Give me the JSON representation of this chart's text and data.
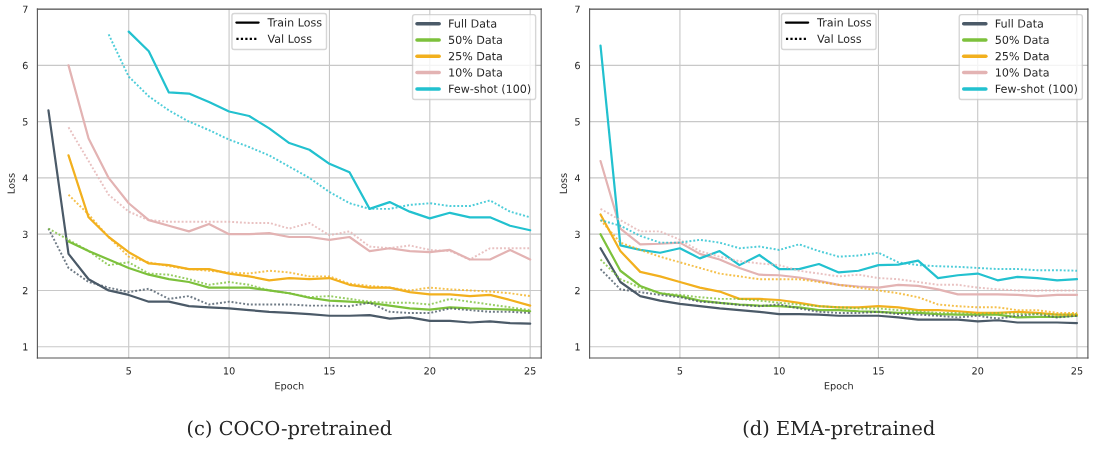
{
  "chart_data": [
    {
      "type": "line",
      "title": "(c) COCO-pretrained",
      "xlabel": "Epoch",
      "ylabel": "Loss",
      "x": [
        1,
        2,
        3,
        4,
        5,
        6,
        7,
        8,
        9,
        10,
        11,
        12,
        13,
        14,
        15,
        16,
        17,
        18,
        19,
        20,
        21,
        22,
        23,
        24,
        25
      ],
      "xlim": [
        0.45,
        25.55
      ],
      "ylim": [
        0.8,
        7
      ],
      "xticks": [
        5,
        10,
        15,
        20,
        25
      ],
      "yticks": [
        1,
        2,
        3,
        4,
        5,
        6,
        7
      ],
      "grid": true,
      "legend": "top right",
      "annotations": [
        "Train Loss",
        "Val Loss"
      ],
      "series": [
        {
          "name": "Full Data",
          "color": "#4b5a68",
          "line_style": "solid",
          "values": [
            5.2,
            2.65,
            2.2,
            2.0,
            1.92,
            1.8,
            1.8,
            1.72,
            1.7,
            1.68,
            1.65,
            1.62,
            1.6,
            1.58,
            1.55,
            1.55,
            1.56,
            1.5,
            1.52,
            1.46,
            1.46,
            1.43,
            1.45,
            1.42,
            1.41
          ]
        },
        {
          "color": "#4b5a68",
          "line_style": "dotted",
          "values": [
            3.1,
            2.4,
            2.15,
            2.05,
            1.97,
            2.03,
            1.85,
            1.9,
            1.75,
            1.8,
            1.75,
            1.75,
            1.75,
            1.73,
            1.73,
            1.72,
            1.78,
            1.62,
            1.6,
            1.6,
            1.68,
            1.65,
            1.62,
            1.62,
            1.6
          ]
        },
        {
          "name": "50% Data",
          "color": "#7dc13c",
          "line_style": "solid",
          "values": [
            null,
            2.87,
            2.7,
            2.55,
            2.4,
            2.28,
            2.2,
            2.15,
            2.05,
            2.05,
            2.05,
            2.0,
            1.95,
            1.87,
            1.82,
            1.8,
            1.78,
            1.73,
            1.68,
            1.66,
            1.7,
            1.68,
            1.67,
            1.66,
            1.63
          ]
        },
        {
          "color": "#7dc13c",
          "line_style": "dotted",
          "values": [
            3.1,
            2.9,
            2.7,
            2.45,
            2.5,
            2.3,
            2.28,
            2.2,
            2.1,
            2.15,
            2.1,
            2.0,
            1.95,
            1.88,
            1.9,
            1.85,
            1.8,
            1.78,
            1.78,
            1.75,
            1.85,
            1.8,
            1.75,
            1.7,
            1.65
          ]
        },
        {
          "name": "25% Data",
          "color": "#f2b01e",
          "line_style": "solid",
          "values": [
            null,
            4.4,
            3.3,
            2.95,
            2.68,
            2.48,
            2.45,
            2.38,
            2.38,
            2.3,
            2.25,
            2.18,
            2.22,
            2.2,
            2.22,
            2.1,
            2.05,
            2.05,
            1.97,
            1.93,
            1.93,
            1.9,
            1.92,
            1.83,
            1.73
          ]
        },
        {
          "color": "#f2b01e",
          "line_style": "dotted",
          "values": [
            null,
            3.7,
            3.35,
            2.95,
            2.6,
            2.5,
            2.43,
            2.38,
            2.35,
            2.32,
            2.3,
            2.35,
            2.32,
            2.25,
            2.25,
            2.12,
            2.08,
            2.05,
            2.0,
            2.05,
            2.02,
            2.0,
            1.98,
            1.95,
            1.9
          ]
        },
        {
          "name": "10% Data",
          "color": "#e3b3b3",
          "line_style": "solid",
          "values": [
            null,
            6.0,
            4.7,
            4.0,
            3.55,
            3.25,
            3.15,
            3.05,
            3.18,
            3.0,
            3.0,
            3.02,
            2.95,
            2.95,
            2.9,
            2.95,
            2.7,
            2.75,
            2.7,
            2.68,
            2.72,
            2.55,
            2.55,
            2.72,
            2.55
          ]
        },
        {
          "color": "#e3b3b3",
          "line_style": "dotted",
          "values": [
            null,
            4.9,
            4.3,
            3.7,
            3.4,
            3.25,
            3.22,
            3.22,
            3.22,
            3.22,
            3.2,
            3.2,
            3.1,
            3.2,
            2.98,
            3.05,
            2.78,
            2.75,
            2.8,
            2.72,
            2.7,
            2.55,
            2.75,
            2.75,
            2.75
          ]
        },
        {
          "name": "Few-shot (100)",
          "color": "#22c1cf",
          "line_style": "solid",
          "values": [
            null,
            null,
            null,
            null,
            6.6,
            6.25,
            5.52,
            5.5,
            5.35,
            5.18,
            5.1,
            4.88,
            4.62,
            4.5,
            4.25,
            4.1,
            3.45,
            3.57,
            3.4,
            3.28,
            3.38,
            3.3,
            3.3,
            3.15,
            3.07
          ]
        },
        {
          "color": "#22c1cf",
          "line_style": "dotted",
          "values": [
            null,
            null,
            null,
            6.55,
            5.8,
            5.45,
            5.2,
            5.0,
            4.85,
            4.68,
            4.55,
            4.4,
            4.2,
            4.0,
            3.75,
            3.55,
            3.45,
            3.45,
            3.52,
            3.55,
            3.5,
            3.5,
            3.6,
            3.4,
            3.3
          ]
        }
      ]
    },
    {
      "type": "line",
      "title": "(d) EMA-pretrained",
      "xlabel": "Epoch",
      "ylabel": "Loss",
      "x": [
        1,
        2,
        3,
        4,
        5,
        6,
        7,
        8,
        9,
        10,
        11,
        12,
        13,
        14,
        15,
        16,
        17,
        18,
        19,
        20,
        21,
        22,
        23,
        24,
        25
      ],
      "xlim": [
        0.45,
        25.55
      ],
      "ylim": [
        0.8,
        7
      ],
      "xticks": [
        5,
        10,
        15,
        20,
        25
      ],
      "yticks": [
        1,
        2,
        3,
        4,
        5,
        6,
        7
      ],
      "grid": true,
      "legend": "top right",
      "annotations": [
        "Train Loss",
        "Val Loss"
      ],
      "series": [
        {
          "name": "Full Data",
          "color": "#4b5a68",
          "line_style": "solid",
          "values": [
            2.75,
            2.15,
            1.9,
            1.82,
            1.76,
            1.72,
            1.68,
            1.65,
            1.62,
            1.58,
            1.58,
            1.57,
            1.55,
            1.55,
            1.55,
            1.52,
            1.48,
            1.48,
            1.48,
            1.45,
            1.47,
            1.43,
            1.43,
            1.43,
            1.42
          ]
        },
        {
          "color": "#4b5a68",
          "line_style": "dotted",
          "values": [
            2.38,
            2.02,
            1.97,
            1.92,
            1.88,
            1.8,
            1.78,
            1.74,
            1.72,
            1.75,
            1.68,
            1.62,
            1.6,
            1.6,
            1.62,
            1.58,
            1.57,
            1.55,
            1.52,
            1.55,
            1.5,
            1.55,
            1.58,
            1.52,
            1.55
          ]
        },
        {
          "name": "50% Data",
          "color": "#7dc13c",
          "line_style": "solid",
          "values": [
            3.0,
            2.35,
            2.08,
            1.95,
            1.9,
            1.82,
            1.78,
            1.75,
            1.73,
            1.72,
            1.7,
            1.65,
            1.65,
            1.63,
            1.62,
            1.6,
            1.6,
            1.58,
            1.57,
            1.57,
            1.57,
            1.52,
            1.53,
            1.53,
            1.55
          ]
        },
        {
          "color": "#7dc13c",
          "line_style": "dotted",
          "values": [
            2.55,
            2.2,
            2.05,
            1.95,
            1.92,
            1.88,
            1.85,
            1.85,
            1.82,
            1.78,
            1.75,
            1.72,
            1.7,
            1.68,
            1.68,
            1.65,
            1.63,
            1.6,
            1.6,
            1.58,
            1.6,
            1.58,
            1.58,
            1.57,
            1.58
          ]
        },
        {
          "name": "25% Data",
          "color": "#f2b01e",
          "line_style": "solid",
          "values": [
            3.35,
            2.7,
            2.33,
            2.25,
            2.15,
            2.05,
            1.98,
            1.85,
            1.85,
            1.83,
            1.78,
            1.72,
            1.7,
            1.7,
            1.72,
            1.7,
            1.65,
            1.65,
            1.63,
            1.6,
            1.6,
            1.62,
            1.6,
            1.57,
            1.57
          ]
        },
        {
          "color": "#f2b01e",
          "line_style": "dotted",
          "values": [
            3.25,
            2.85,
            2.72,
            2.6,
            2.5,
            2.4,
            2.3,
            2.25,
            2.2,
            2.2,
            2.2,
            2.15,
            2.1,
            2.05,
            2.0,
            1.95,
            1.88,
            1.75,
            1.72,
            1.7,
            1.7,
            1.65,
            1.65,
            1.6,
            1.6
          ]
        },
        {
          "name": "10% Data",
          "color": "#e3b3b3",
          "line_style": "solid",
          "values": [
            4.3,
            3.1,
            2.82,
            2.83,
            2.85,
            2.65,
            2.55,
            2.4,
            2.28,
            2.27,
            2.23,
            2.17,
            2.1,
            2.07,
            2.05,
            2.1,
            2.08,
            2.02,
            1.93,
            1.93,
            1.93,
            1.92,
            1.9,
            1.92,
            1.92
          ]
        },
        {
          "color": "#e3b3b3",
          "line_style": "dotted",
          "values": [
            3.45,
            3.25,
            3.05,
            3.05,
            2.9,
            2.7,
            2.6,
            2.52,
            2.48,
            2.45,
            2.35,
            2.3,
            2.25,
            2.28,
            2.22,
            2.2,
            2.15,
            2.1,
            2.1,
            2.05,
            2.02,
            2.0,
            2.0,
            2.0,
            2.0
          ]
        },
        {
          "name": "Few-shot (100)",
          "color": "#22c1cf",
          "line_style": "solid",
          "values": [
            6.35,
            2.8,
            2.72,
            2.67,
            2.75,
            2.57,
            2.7,
            2.45,
            2.63,
            2.38,
            2.38,
            2.47,
            2.32,
            2.35,
            2.45,
            2.46,
            2.53,
            2.22,
            2.27,
            2.3,
            2.18,
            2.24,
            2.22,
            2.18,
            2.2
          ]
        },
        {
          "color": "#22c1cf",
          "line_style": "dotted",
          "values": [
            3.25,
            3.15,
            2.97,
            2.85,
            2.85,
            2.9,
            2.85,
            2.75,
            2.78,
            2.72,
            2.82,
            2.7,
            2.6,
            2.62,
            2.67,
            2.5,
            2.45,
            2.43,
            2.42,
            2.4,
            2.38,
            2.38,
            2.36,
            2.36,
            2.35
          ]
        }
      ]
    }
  ]
}
